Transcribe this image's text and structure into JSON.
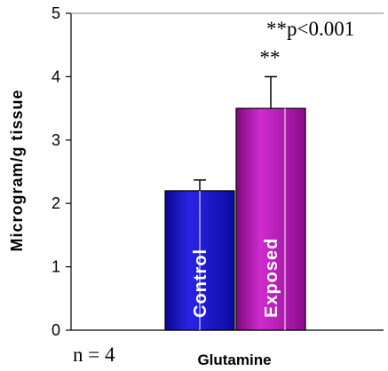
{
  "chart_data": {
    "type": "bar",
    "ylabel": "Microgram/g tissue",
    "xlabel": "Glutamine",
    "ylim": [
      0,
      5
    ],
    "yticks": [
      "0",
      "1",
      "2",
      "3",
      "4",
      "5"
    ],
    "grid": false,
    "legend": "none",
    "series": [
      {
        "name": "Control",
        "value": 2.2,
        "error": 0.17,
        "color": "#1a14c8",
        "significance": ""
      },
      {
        "name": "Exposed",
        "value": 3.5,
        "error": 0.5,
        "color": "#b012b0",
        "significance": "**"
      }
    ],
    "annotations": {
      "p_value": "**p<0.001",
      "n_note": "n = 4"
    }
  }
}
